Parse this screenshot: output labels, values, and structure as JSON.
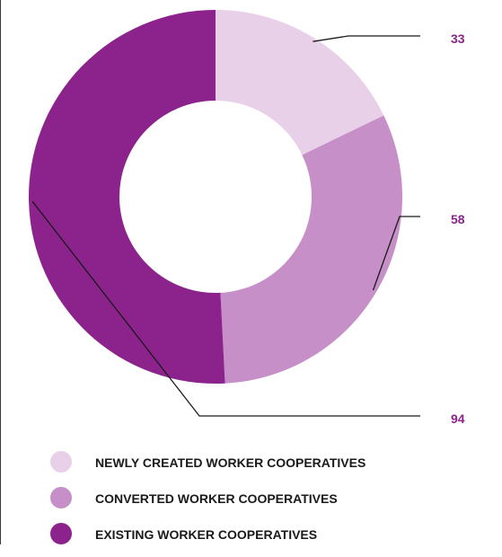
{
  "chart_data": {
    "type": "pie",
    "donut": true,
    "title": "",
    "categories": [
      "NEWLY CREATED WORKER COOPERATIVES",
      "CONVERTED WORKER COOPERATIVES",
      "EXISTING WORKER COOPERATIVES"
    ],
    "values": [
      33,
      58,
      94
    ],
    "colors": [
      "#e8d1e8",
      "#c68fc8",
      "#8c228c"
    ],
    "label_color": "#8c228c",
    "legend_position": "bottom-left"
  }
}
